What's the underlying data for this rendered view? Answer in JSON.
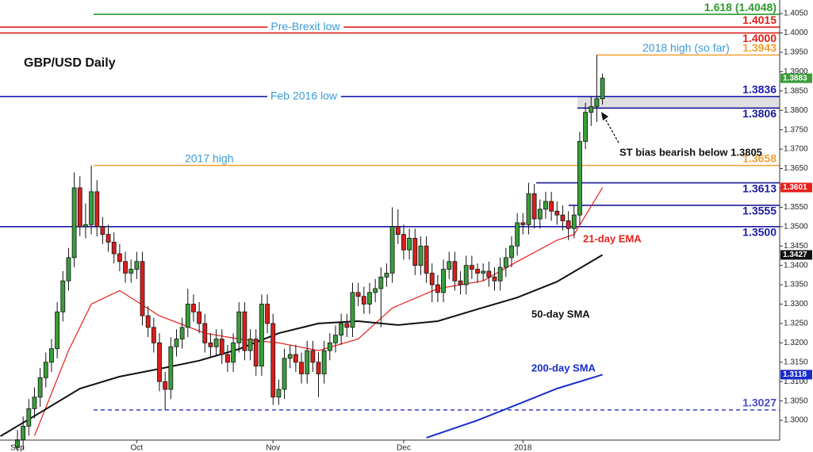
{
  "chart_data": {
    "type": "candlestick",
    "title": "GBP/USD Daily",
    "up_color": "#3a9e3a",
    "down_color": "#d8201c",
    "xlim": [
      -3.07,
      134.2
    ],
    "ylim": [
      1.2949,
      1.4085
    ],
    "xticks": [
      {
        "value": 0,
        "label": "Sep"
      },
      {
        "value": 21,
        "label": "Oct"
      },
      {
        "value": 45,
        "label": "Nov"
      },
      {
        "value": 68,
        "label": "Dec"
      },
      {
        "value": 89,
        "label": "2018"
      }
    ],
    "yticks": [
      {
        "value": 1.3,
        "label": "1.3000"
      },
      {
        "value": 1.305,
        "label": "1.3050"
      },
      {
        "value": 1.31,
        "label": "1.3100"
      },
      {
        "value": 1.315,
        "label": "1.3150"
      },
      {
        "value": 1.32,
        "label": "1.3200"
      },
      {
        "value": 1.325,
        "label": "1.3250"
      },
      {
        "value": 1.33,
        "label": "1.3300"
      },
      {
        "value": 1.335,
        "label": "1.3350"
      },
      {
        "value": 1.34,
        "label": "1.3400"
      },
      {
        "value": 1.345,
        "label": "1.3450"
      },
      {
        "value": 1.35,
        "label": "1.3500"
      },
      {
        "value": 1.355,
        "label": "1.3550"
      },
      {
        "value": 1.36,
        "label": "1.3600"
      },
      {
        "value": 1.365,
        "label": "1.3650"
      },
      {
        "value": 1.37,
        "label": "1.3700"
      },
      {
        "value": 1.375,
        "label": "1.3750"
      },
      {
        "value": 1.38,
        "label": "1.3800"
      },
      {
        "value": 1.385,
        "label": "1.3850"
      },
      {
        "value": 1.39,
        "label": "1.3900"
      },
      {
        "value": 1.395,
        "label": "1.3950"
      },
      {
        "value": 1.4,
        "label": "1.4000"
      },
      {
        "value": 1.405,
        "label": "1.4050"
      }
    ],
    "open": [
      1.293,
      1.295,
      1.2985,
      1.303,
      1.306,
      1.311,
      1.315,
      1.3185,
      1.328,
      1.336,
      1.342,
      1.36,
      1.35,
      1.3505,
      1.359,
      1.35,
      1.348,
      1.346,
      1.343,
      1.341,
      1.338,
      1.339,
      1.341,
      1.327,
      1.324,
      1.32,
      1.31,
      1.308,
      1.319,
      1.321,
      1.324,
      1.33,
      1.328,
      1.325,
      1.32,
      1.319,
      1.321,
      1.317,
      1.315,
      1.32,
      1.328,
      1.318,
      1.321,
      1.314,
      1.33,
      1.325,
      1.306,
      1.308,
      1.316,
      1.317,
      1.315,
      1.312,
      1.318,
      1.315,
      1.312,
      1.318,
      1.32,
      1.322,
      1.325,
      1.324,
      1.333,
      1.332,
      1.33,
      1.333,
      1.334,
      1.337,
      1.338,
      1.35,
      1.348,
      1.344,
      1.347,
      1.34,
      1.345,
      1.338,
      1.335,
      1.333,
      1.339,
      1.341,
      1.336,
      1.335,
      1.34,
      1.339,
      1.338,
      1.3385,
      1.337,
      1.336,
      1.3395,
      1.342,
      1.345,
      1.351,
      1.3505,
      1.3585,
      1.352,
      1.3545,
      1.3565,
      1.354,
      1.353,
      1.3515,
      1.3495,
      1.353,
      1.372,
      1.3795,
      1.381,
      1.383
    ],
    "high": [
      1.2975,
      1.301,
      1.3055,
      1.3085,
      1.3135,
      1.3175,
      1.321,
      1.3305,
      1.3385,
      1.3445,
      1.364,
      1.363,
      1.356,
      1.3658,
      1.362,
      1.3525,
      1.3505,
      1.3485,
      1.3455,
      1.3435,
      1.3415,
      1.3435,
      1.3435,
      1.3295,
      1.3265,
      1.3225,
      1.3125,
      1.3215,
      1.3235,
      1.3265,
      1.334,
      1.3325,
      1.3305,
      1.3275,
      1.3225,
      1.3235,
      1.3235,
      1.3195,
      1.3225,
      1.3305,
      1.3305,
      1.3235,
      1.3235,
      1.3325,
      1.3325,
      1.3275,
      1.3105,
      1.3185,
      1.3195,
      1.3195,
      1.3175,
      1.3205,
      1.3205,
      1.3175,
      1.3205,
      1.3225,
      1.3245,
      1.3275,
      1.3275,
      1.3355,
      1.3355,
      1.3345,
      1.3355,
      1.3365,
      1.3395,
      1.3405,
      1.355,
      1.3545,
      1.3505,
      1.3495,
      1.3495,
      1.3475,
      1.3475,
      1.3405,
      1.3375,
      1.3415,
      1.3435,
      1.3435,
      1.3385,
      1.3425,
      1.3425,
      1.3405,
      1.3405,
      1.341,
      1.3395,
      1.342,
      1.3445,
      1.3475,
      1.3535,
      1.3535,
      1.3613,
      1.361,
      1.357,
      1.359,
      1.359,
      1.3565,
      1.3555,
      1.354,
      1.3555,
      1.3745,
      1.382,
      1.3835,
      1.3943,
      1.3895
    ],
    "low": [
      1.292,
      1.2925,
      1.296,
      1.3005,
      1.3035,
      1.3085,
      1.3125,
      1.316,
      1.3255,
      1.3335,
      1.3395,
      1.3475,
      1.347,
      1.348,
      1.3475,
      1.3455,
      1.3435,
      1.3405,
      1.3385,
      1.3355,
      1.3355,
      1.3365,
      1.3245,
      1.3215,
      1.3175,
      1.3075,
      1.3027,
      1.3055,
      1.3165,
      1.3185,
      1.3215,
      1.3255,
      1.3225,
      1.3175,
      1.3165,
      1.3165,
      1.3145,
      1.3125,
      1.3125,
      1.3175,
      1.3155,
      1.3155,
      1.3115,
      1.3115,
      1.3225,
      1.304,
      1.304,
      1.3055,
      1.3135,
      1.3125,
      1.3095,
      1.3095,
      1.3125,
      1.306,
      1.3095,
      1.3155,
      1.3175,
      1.3195,
      1.3215,
      1.3215,
      1.3295,
      1.3275,
      1.3275,
      1.3305,
      1.324,
      1.3345,
      1.3355,
      1.3455,
      1.3415,
      1.3415,
      1.3375,
      1.3375,
      1.3355,
      1.3305,
      1.3305,
      1.3305,
      1.3365,
      1.3335,
      1.3325,
      1.3325,
      1.3365,
      1.3355,
      1.336,
      1.3345,
      1.3335,
      1.3335,
      1.337,
      1.3395,
      1.3425,
      1.348,
      1.348,
      1.3495,
      1.3495,
      1.352,
      1.3515,
      1.3505,
      1.349,
      1.3465,
      1.347,
      1.3505,
      1.37,
      1.376,
      1.377,
      1.3815
    ],
    "close": [
      1.295,
      1.2985,
      1.303,
      1.306,
      1.311,
      1.315,
      1.3185,
      1.328,
      1.336,
      1.342,
      1.36,
      1.35,
      1.3505,
      1.359,
      1.35,
      1.348,
      1.346,
      1.343,
      1.341,
      1.338,
      1.339,
      1.341,
      1.327,
      1.324,
      1.32,
      1.31,
      1.308,
      1.319,
      1.321,
      1.324,
      1.33,
      1.328,
      1.325,
      1.32,
      1.319,
      1.321,
      1.317,
      1.315,
      1.32,
      1.328,
      1.318,
      1.321,
      1.314,
      1.33,
      1.325,
      1.306,
      1.308,
      1.316,
      1.317,
      1.315,
      1.312,
      1.318,
      1.315,
      1.312,
      1.318,
      1.32,
      1.322,
      1.325,
      1.324,
      1.333,
      1.332,
      1.33,
      1.333,
      1.334,
      1.337,
      1.338,
      1.35,
      1.348,
      1.344,
      1.347,
      1.34,
      1.345,
      1.338,
      1.335,
      1.333,
      1.339,
      1.341,
      1.336,
      1.335,
      1.34,
      1.339,
      1.338,
      1.3385,
      1.337,
      1.336,
      1.3395,
      1.342,
      1.345,
      1.351,
      1.3505,
      1.3585,
      1.352,
      1.3545,
      1.3565,
      1.354,
      1.353,
      1.3515,
      1.3495,
      1.353,
      1.372,
      1.3795,
      1.381,
      1.383,
      1.3883
    ],
    "overlays": [
      {
        "name": "21-day EMA",
        "color": "#e8201c",
        "x": [
          3,
          6,
          9,
          13,
          18,
          25,
          33,
          39,
          46,
          53,
          60,
          66,
          74,
          82,
          88,
          95,
          98,
          103
        ],
        "values": [
          1.296,
          1.307,
          1.318,
          1.33,
          1.3335,
          1.327,
          1.3225,
          1.321,
          1.32,
          1.318,
          1.321,
          1.329,
          1.334,
          1.336,
          1.341,
          1.3465,
          1.348,
          1.3601
        ]
      },
      {
        "name": "50-day SMA",
        "color": "#111111",
        "x": [
          -3,
          4,
          11,
          18,
          25,
          32,
          39,
          46,
          53,
          60,
          67,
          74,
          81,
          88,
          95,
          103
        ],
        "values": [
          1.2959,
          1.302,
          1.3082,
          1.3113,
          1.3133,
          1.3154,
          1.3184,
          1.3225,
          1.325,
          1.3256,
          1.3246,
          1.3256,
          1.3287,
          1.3317,
          1.3358,
          1.3427
        ]
      },
      {
        "name": "200-day SMA",
        "color": "#1a2ccc",
        "x": [
          72,
          81,
          88,
          95,
          103
        ],
        "values": [
          1.2955,
          1.3,
          1.3041,
          1.3082,
          1.3118
        ]
      }
    ],
    "levels": [
      {
        "value": 1.4048,
        "label": "1.618 (1.4048)",
        "color": "#2a9a2a"
      },
      {
        "value": 1.4015,
        "label": "1.4015",
        "color": "#e0201b",
        "note": "Pre-Brexit low"
      },
      {
        "value": 1.4,
        "label": "1.4000",
        "color": "#e0201b"
      },
      {
        "value": 1.3943,
        "label": "1.3943",
        "color": "#f0a030",
        "note": "2018 high (so far)"
      },
      {
        "value": 1.3836,
        "label": "1.3836",
        "color": "#1a1ab0",
        "note": "Feb 2016 low"
      },
      {
        "value": 1.3806,
        "label": "1.3806",
        "color": "#1a1a9a"
      },
      {
        "value": 1.3658,
        "label": "1.3658",
        "color": "#f0a030",
        "note": "2017 high"
      },
      {
        "value": 1.3613,
        "label": "1.3613",
        "color": "#1a1a9a"
      },
      {
        "value": 1.3555,
        "label": "1.3555",
        "color": "#1a1a9a"
      },
      {
        "value": 1.35,
        "label": "1.3500",
        "color": "#1a1ab0"
      },
      {
        "value": 1.3027,
        "label": "1.3027",
        "color": "#4a4acc"
      }
    ],
    "annotation": "ST bias bearish below 1.3805"
  }
}
